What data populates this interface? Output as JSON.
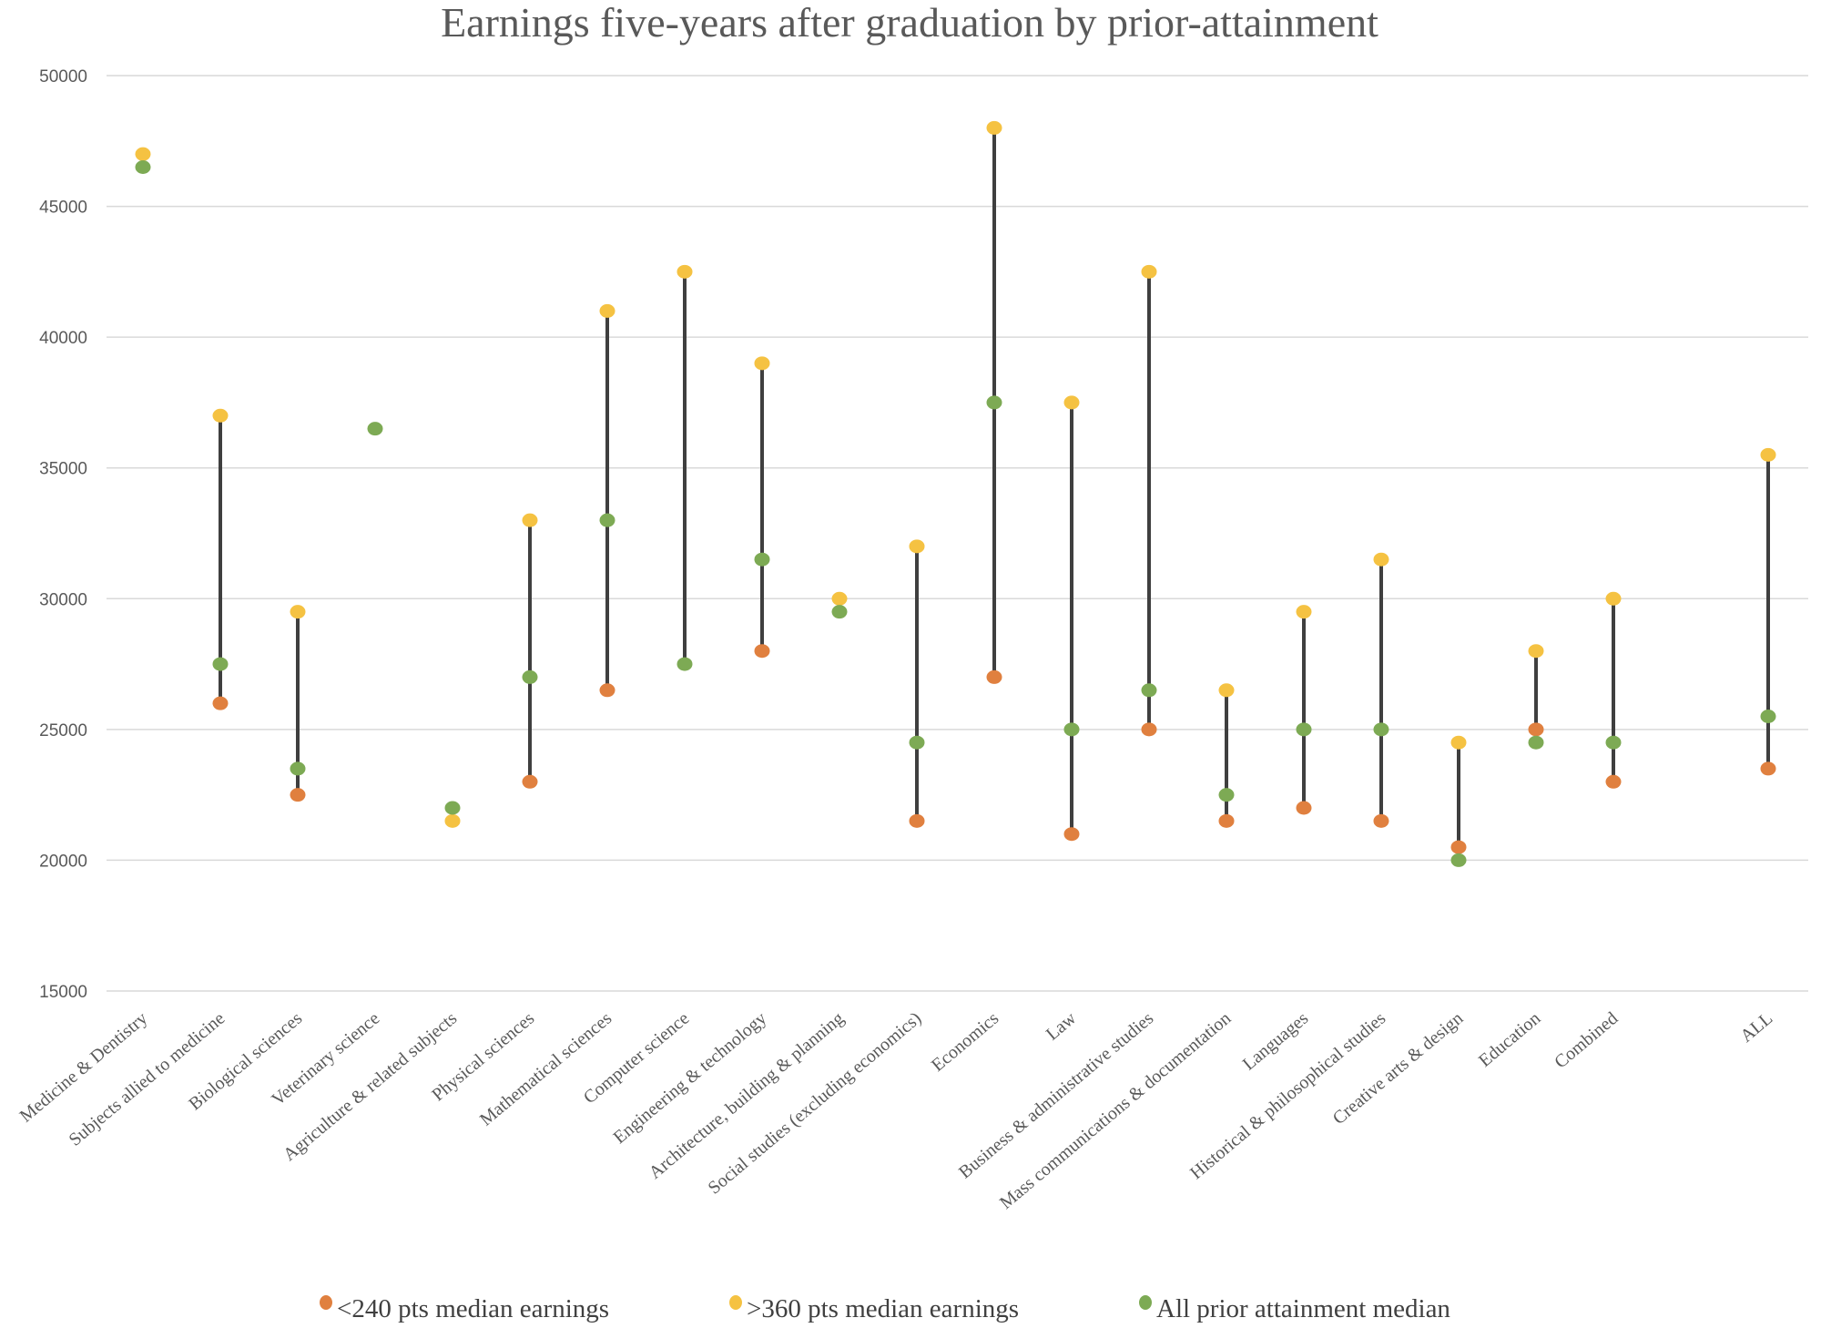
{
  "chart_data": {
    "type": "scatter",
    "subtype": "dot-range (high-low lines)",
    "title": "Earnings five-years after graduation by prior-attainment",
    "xlabel": "",
    "ylabel": "",
    "ylim": [
      15000,
      50000
    ],
    "yticks": [
      "15000",
      "20000",
      "25000",
      "30000",
      "35000",
      "40000",
      "45000",
      "50000"
    ],
    "grid": true,
    "legend_position": "bottom",
    "colors": {
      "low": "#E0803F",
      "high": "#F5C242",
      "all": "#7DAA54",
      "line": "#3F3F3F",
      "grid": "#D9D9D9"
    },
    "series": [
      {
        "key": "low",
        "name": "<240 pts median earnings"
      },
      {
        "key": "high",
        "name": ">360 pts median earnings"
      },
      {
        "key": "all",
        "name": "All prior attainment median"
      }
    ],
    "categories": [
      {
        "label": "Medicine & Dentistry",
        "slot": 0,
        "low": null,
        "high": 47000,
        "all": 46500,
        "line": false
      },
      {
        "label": "Subjects allied to medicine",
        "slot": 1,
        "low": 26000,
        "high": 37000,
        "all": 27500,
        "line": true
      },
      {
        "label": "Biological sciences",
        "slot": 2,
        "low": 22500,
        "high": 29500,
        "all": 23500,
        "line": true
      },
      {
        "label": "Veterinary science",
        "slot": 3,
        "low": null,
        "high": null,
        "all": 36500,
        "line": false
      },
      {
        "label": "Agriculture & related subjects",
        "slot": 4,
        "low": null,
        "high": 21500,
        "all": 22000,
        "line": false
      },
      {
        "label": "Physical sciences",
        "slot": 5,
        "low": 23000,
        "high": 33000,
        "all": 27000,
        "line": true
      },
      {
        "label": "Mathematical sciences",
        "slot": 6,
        "low": 26500,
        "high": 41000,
        "all": 33000,
        "line": true
      },
      {
        "label": "Computer science",
        "slot": 7,
        "low": null,
        "high": 42500,
        "all": 27500,
        "line": true
      },
      {
        "label": "Engineering & technology",
        "slot": 8,
        "low": 28000,
        "high": 39000,
        "all": 31500,
        "line": true
      },
      {
        "label": "Architecture, building & planning",
        "slot": 9,
        "low": null,
        "high": 30000,
        "all": 29500,
        "line": false
      },
      {
        "label": "Social studies (excluding economics)",
        "slot": 10,
        "low": 21500,
        "high": 32000,
        "all": 24500,
        "line": true
      },
      {
        "label": "Economics",
        "slot": 11,
        "low": 27000,
        "high": 48000,
        "all": 37500,
        "line": true
      },
      {
        "label": "Law",
        "slot": 12,
        "low": 21000,
        "high": 37500,
        "all": 25000,
        "line": true
      },
      {
        "label": "Business & administrative studies",
        "slot": 13,
        "low": 25000,
        "high": 42500,
        "all": 26500,
        "line": true
      },
      {
        "label": "Mass communications & documentation",
        "slot": 14,
        "low": 21500,
        "high": 26500,
        "all": 22500,
        "line": true
      },
      {
        "label": "Languages",
        "slot": 15,
        "low": 22000,
        "high": 29500,
        "all": 25000,
        "line": true
      },
      {
        "label": "Historical & philosophical studies",
        "slot": 16,
        "low": 21500,
        "high": 31500,
        "all": 25000,
        "line": true
      },
      {
        "label": "Creative arts & design",
        "slot": 17,
        "low": 20500,
        "high": 24500,
        "all": 20000,
        "line": true
      },
      {
        "label": "Education",
        "slot": 18,
        "low": 25000,
        "high": 28000,
        "all": 24500,
        "line": true
      },
      {
        "label": "Combined",
        "slot": 19,
        "low": 23000,
        "high": 30000,
        "all": 24500,
        "line": true
      },
      {
        "label": "ALL",
        "slot": 21,
        "low": 23500,
        "high": 35500,
        "all": 25500,
        "line": true
      }
    ]
  }
}
